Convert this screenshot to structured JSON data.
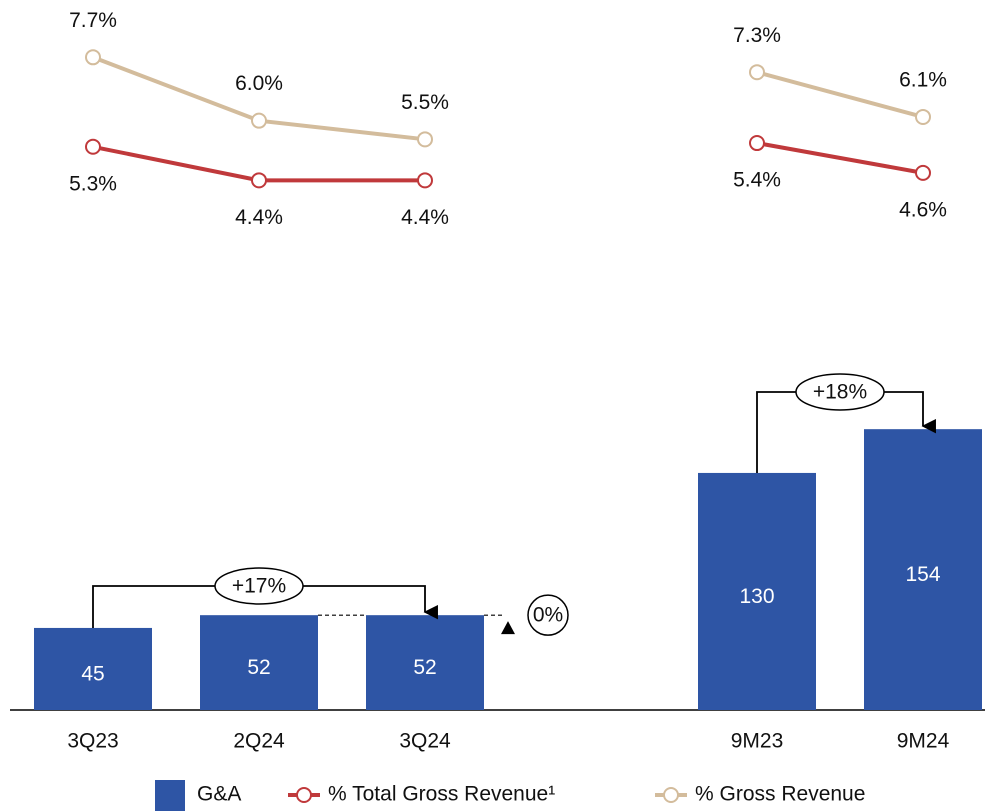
{
  "chart_data": {
    "type": "bar",
    "categories": [
      "3Q23",
      "2Q24",
      "3Q24",
      null,
      "9M23",
      "9M24"
    ],
    "ylim": [
      0,
      170
    ],
    "y2lim": [
      2.8,
      8.7
    ],
    "series": [
      {
        "name": "G&A",
        "color": "#2e55a5",
        "values": [
          45,
          52,
          52,
          null,
          130,
          154
        ]
      },
      {
        "name": "% Total Gross Revenue¹",
        "color": "#c0393b",
        "axis": "y2",
        "type": "line",
        "values": [
          5.3,
          4.4,
          4.4,
          null,
          5.4,
          4.6
        ],
        "value_labels": [
          "5.3%",
          "4.4%",
          "4.4%",
          null,
          "5.4%",
          "4.6%"
        ]
      },
      {
        "name": "% Gross Revenue",
        "color": "#d3bc9c",
        "axis": "y2",
        "type": "line",
        "values": [
          7.7,
          6.0,
          5.5,
          null,
          7.3,
          6.1
        ],
        "value_labels": [
          "7.7%",
          "6.0%",
          "5.5%",
          null,
          "7.3%",
          "6.1%"
        ]
      }
    ],
    "annotations": [
      "+17%",
      "0%",
      "+18%"
    ]
  }
}
